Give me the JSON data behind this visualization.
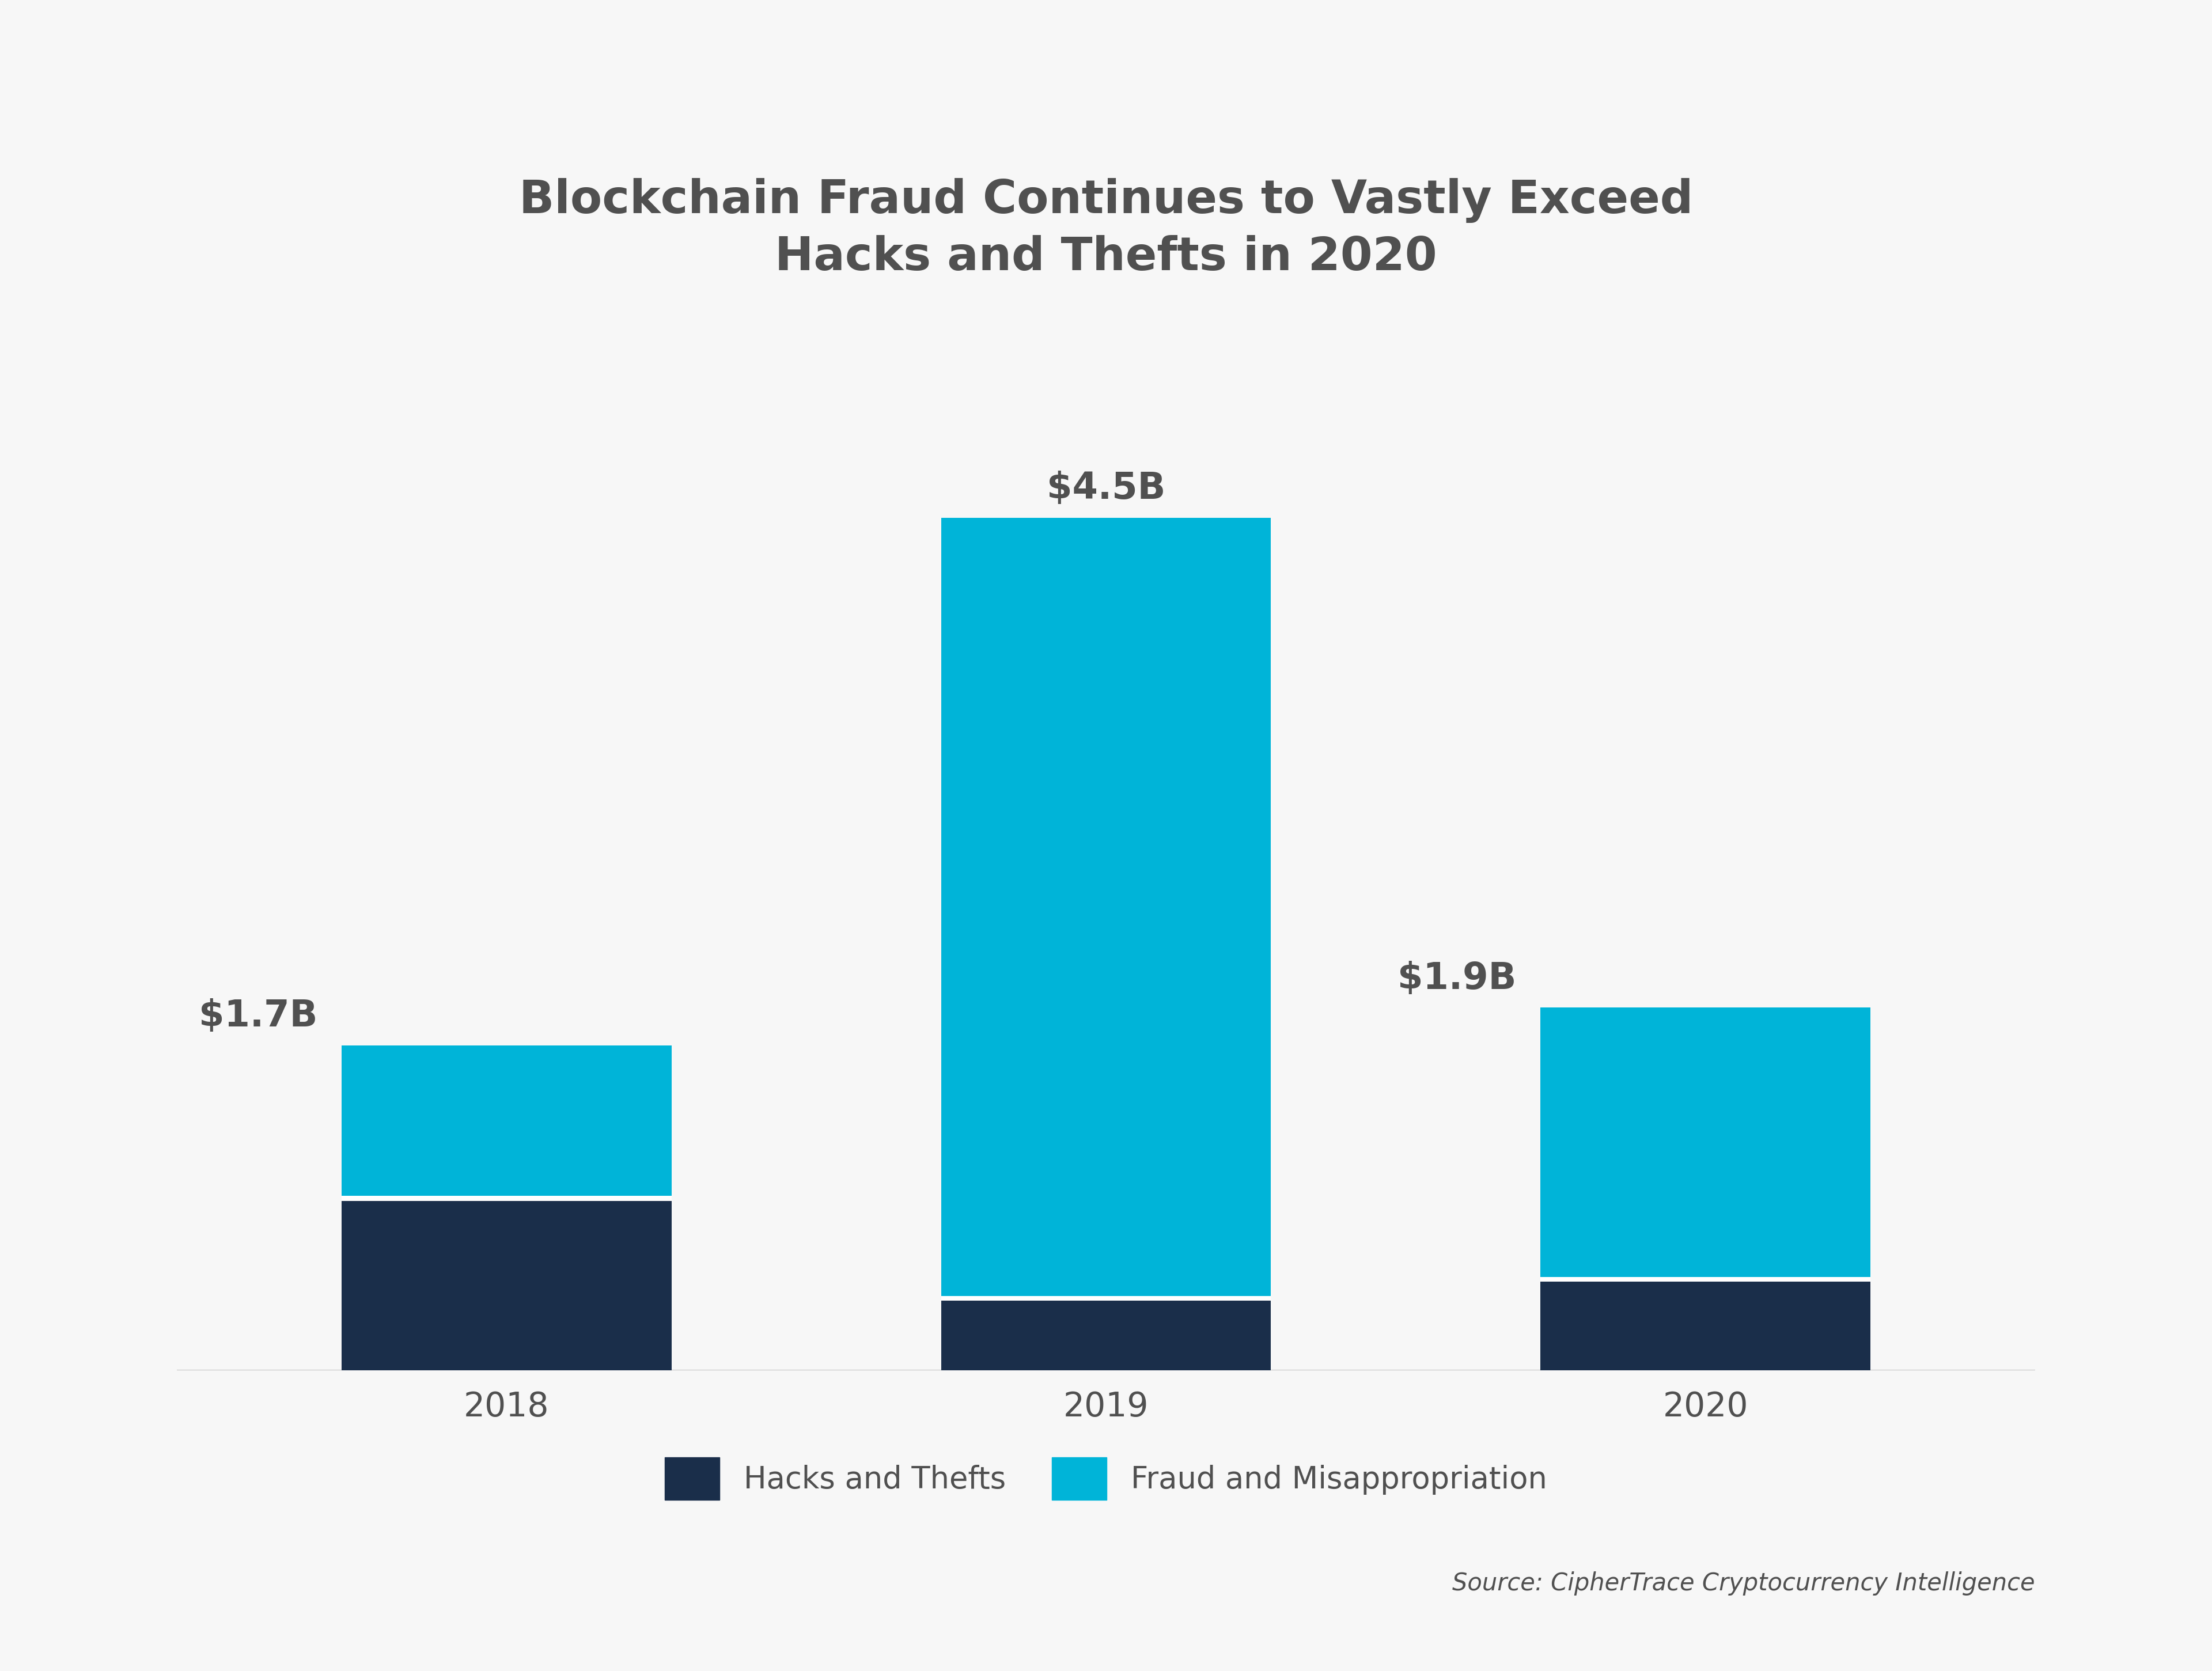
{
  "title_line1": "Blockchain Fraud Continues to Vastly Exceed",
  "title_line2": "Hacks and Thefts in 2020",
  "categories": [
    "2018",
    "2019",
    "2020"
  ],
  "hacks_thefts": [
    0.9,
    0.37,
    0.47
  ],
  "fraud_misapp": [
    0.8,
    4.13,
    1.43
  ],
  "totals": [
    "$1.7B",
    "$4.5B",
    "$1.9B"
  ],
  "color_hacks": "#1a2e4a",
  "color_fraud": "#00b4d8",
  "color_separator": "#ffffff",
  "background_color": "#f7f7f7",
  "title_color": "#505050",
  "tick_label_color": "#505050",
  "title_fontsize": 58,
  "tick_fontsize": 42,
  "label_fontsize": 46,
  "legend_fontsize": 38,
  "source_fontsize": 30,
  "source_text": "Source: CipherTrace Cryptocurrency Intelligence",
  "legend_hacks": "Hacks and Thefts",
  "legend_fraud": "Fraud and Misappropriation",
  "bar_width": 0.55,
  "ylim": [
    0,
    5.5
  ],
  "xlim_left": -0.55,
  "xlim_right": 2.55
}
